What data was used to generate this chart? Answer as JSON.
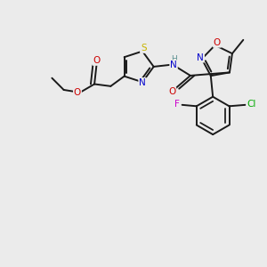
{
  "bg_color": "#ebebeb",
  "bond_color": "#1a1a1a",
  "bond_width": 1.4,
  "atom_colors": {
    "S": "#c8b400",
    "N": "#0000cc",
    "O": "#cc0000",
    "F": "#cc00cc",
    "Cl": "#00aa00",
    "C": "#1a1a1a",
    "H": "#5a9090"
  },
  "figsize": [
    3.0,
    3.0
  ],
  "dpi": 100
}
